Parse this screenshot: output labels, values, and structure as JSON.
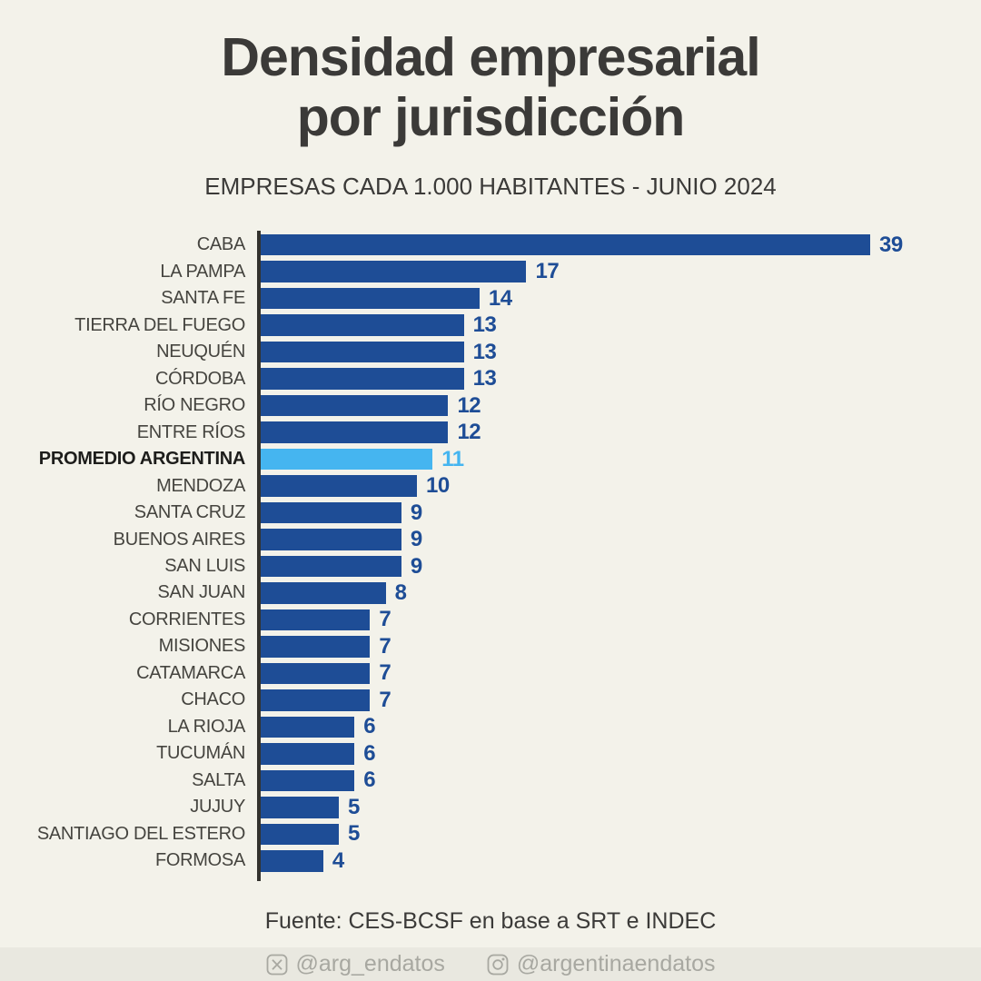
{
  "header": {
    "title_line1": "Densidad empresarial",
    "title_line2": "por jurisdicción",
    "subtitle": "EMPRESAS CADA 1.000 HABITANTES - JUNIO 2024"
  },
  "chart_data": {
    "type": "bar",
    "orientation": "horizontal",
    "title": "Densidad empresarial por jurisdicción",
    "subtitle": "EMPRESAS CADA 1.000 HABITANTES - JUNIO 2024",
    "categories": [
      "CABA",
      "LA PAMPA",
      "SANTA FE",
      "TIERRA DEL FUEGO",
      "NEUQUÉN",
      "CÓRDOBA",
      "RÍO NEGRO",
      "ENTRE RÍOS",
      "PROMEDIO ARGENTINA",
      "MENDOZA",
      "SANTA CRUZ",
      "BUENOS AIRES",
      "SAN LUIS",
      "SAN JUAN",
      "CORRIENTES",
      "MISIONES",
      "CATAMARCA",
      "CHACO",
      "LA RIOJA",
      "TUCUMÁN",
      "SALTA",
      "JUJUY",
      "SANTIAGO DEL ESTERO",
      "FORMOSA"
    ],
    "values": [
      39,
      17,
      14,
      13,
      13,
      13,
      12,
      12,
      11,
      10,
      9,
      9,
      9,
      8,
      7,
      7,
      7,
      7,
      6,
      6,
      6,
      5,
      5,
      4
    ],
    "highlight_category": "PROMEDIO ARGENTINA",
    "highlight_index": 8,
    "xlim": [
      0,
      39
    ],
    "grid": false,
    "legend": false,
    "value_labels_shown": true,
    "colors": {
      "bar": "#1e4d96",
      "highlight_bar": "#45b5f0",
      "value_label": "#1e4d96",
      "highlight_value_label": "#45b5f0",
      "axis": "#33322e"
    }
  },
  "footer": {
    "source": "Fuente: CES-BCSF en base a SRT e INDEC",
    "social": [
      {
        "icon": "x-twitter-icon",
        "handle": "@arg_endatos"
      },
      {
        "icon": "instagram-icon",
        "handle": "@argentinaendatos"
      }
    ]
  },
  "colors": {
    "background": "#f3f2ea",
    "footer_strip": "#e9e8e0",
    "title": "#3b3a38",
    "category_label": "#45443f"
  }
}
